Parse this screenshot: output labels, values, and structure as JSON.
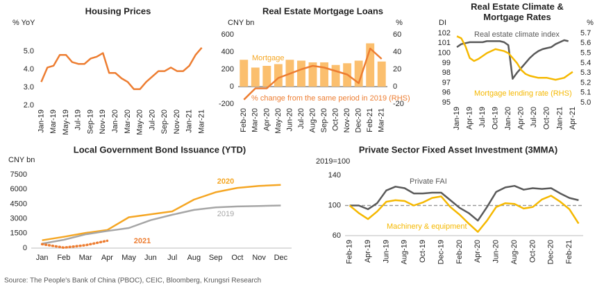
{
  "chart_data": [
    {
      "type": "line",
      "title": "Housing Prices",
      "y_label": "% YoY",
      "categories": [
        "Jan-19",
        null,
        "Mar-19",
        null,
        "May-19",
        null,
        "Jul-19",
        null,
        "Sep-19",
        null,
        "Nov-19",
        null,
        "Jan-20",
        null,
        "Mar-20",
        null,
        "May-20",
        null,
        "Jul-20",
        null,
        "Sep-20",
        null,
        "Nov-20",
        null,
        "Jan-21",
        null,
        "Mar-21"
      ],
      "series": [
        {
          "name": null,
          "color": "#ed7d31",
          "values": [
            3.3,
            4.1,
            4.2,
            4.8,
            4.8,
            4.4,
            4.3,
            4.3,
            4.6,
            4.7,
            4.9,
            3.8,
            3.8,
            3.5,
            3.3,
            2.9,
            2.9,
            3.3,
            3.6,
            3.9,
            3.9,
            4.1,
            3.9,
            3.9,
            4.2,
            4.8,
            5.2
          ]
        }
      ],
      "ylim": [
        2,
        5.5
      ],
      "yticks": [
        {
          "value": 2,
          "label": "2.0"
        },
        {
          "value": 3,
          "label": "3.0"
        },
        {
          "value": 4,
          "label": "4.0"
        },
        {
          "value": 5,
          "label": "5.0"
        }
      ],
      "grid": false
    },
    {
      "type": "bar",
      "title": "Real Estate Mortgage Loans",
      "y_label": "CNY bn",
      "y2_label": "%",
      "categories": [
        "Feb-20",
        "Mar-20",
        "Apr-20",
        "May-20",
        "Jun-20",
        "Jul-20",
        "Aug-20",
        "Sep-20",
        "Oct-20",
        "Nov-20",
        "Dec-20",
        "Feb-21",
        "Mar-21"
      ],
      "series": [
        {
          "name": "Mortgage",
          "type": "bar",
          "color": "#fbbf6e",
          "values": [
            310,
            220,
            240,
            260,
            310,
            300,
            280,
            280,
            250,
            270,
            300,
            500,
            290
          ]
        },
        {
          "name": "% change from the same period in 2019 (RHS)",
          "type": "line",
          "axis": "y2",
          "color": "#ed7d31",
          "values": [
            -15,
            -2,
            -2,
            10,
            15,
            20,
            24,
            22,
            18,
            14,
            4,
            44,
            32
          ]
        }
      ],
      "ylim": [
        -200,
        600
      ],
      "yticks": [
        -200,
        0,
        200,
        400,
        600
      ],
      "y2lim": [
        -20,
        60
      ],
      "y2ticks": [
        -20,
        0,
        20,
        40,
        60
      ],
      "grid": false
    },
    {
      "type": "line",
      "title": "Real Estate Climate & Mortgage Rates",
      "y_label": "DI",
      "y2_label": "%",
      "categories": [
        "Jan-19",
        null,
        null,
        "Apr-19",
        null,
        null,
        "Jul-19",
        null,
        null,
        "Oct-19",
        null,
        null,
        "Jan-20",
        null,
        null,
        "Apr-20",
        null,
        null,
        "Jul-20",
        null,
        null,
        "Oct-20",
        null,
        null,
        "Jan-21",
        null,
        null,
        "Apr-21"
      ],
      "series": [
        {
          "name": "Real estate climate index",
          "color": "#595959",
          "values": [
            100.6,
            100.9,
            101.0,
            101.1,
            101.1,
            101.1,
            101.1,
            101.2,
            101.2,
            101.2,
            101.2,
            101.1,
            100.8,
            97.4,
            98.0,
            98.5,
            99.0,
            99.5,
            99.9,
            100.2,
            100.4,
            100.5,
            100.6,
            100.9,
            101.1,
            101.3,
            101.2,
            null
          ]
        },
        {
          "name": "Mortgage lending rate (RHS)",
          "axis": "y2",
          "color": "#f5b800",
          "values": [
            5.67,
            5.65,
            5.57,
            5.45,
            5.42,
            5.44,
            5.47,
            5.5,
            5.52,
            5.54,
            5.53,
            5.52,
            5.5,
            5.45,
            5.4,
            5.33,
            5.29,
            5.27,
            5.26,
            5.25,
            5.25,
            5.25,
            5.24,
            5.23,
            5.24,
            5.25,
            5.28,
            5.31
          ]
        }
      ],
      "ylim": [
        95,
        102
      ],
      "yticks": [
        95,
        96,
        97,
        98,
        99,
        100,
        101,
        102
      ],
      "y2lim": [
        5,
        5.7
      ],
      "y2ticks": [
        {
          "value": 5,
          "label": "5.0"
        },
        5.1,
        5.2,
        5.3,
        5.4,
        5.5,
        5.6,
        5.7
      ],
      "grid": false
    },
    {
      "type": "line",
      "title": "Local Government Bond Issuance (YTD)",
      "y_label": "CNY bn",
      "categories": [
        "Jan",
        "Feb",
        "Mar",
        "Apr",
        "May",
        "Jun",
        "Jul",
        "Aug",
        "Sep",
        "Oct",
        "Nov",
        "Dec"
      ],
      "series": [
        {
          "name": "2020",
          "color": "#f5a623",
          "values": [
            800,
            1150,
            1550,
            1850,
            3150,
            3450,
            3750,
            4950,
            5700,
            6150,
            6350,
            6450
          ]
        },
        {
          "name": "2019",
          "color": "#a6a6a6",
          "values": [
            450,
            850,
            1400,
            1750,
            2050,
            2850,
            3400,
            3900,
            4150,
            4250,
            4300,
            4350
          ]
        },
        {
          "name": "2021",
          "color": "#ed7d31",
          "line_style": "dotted",
          "values": [
            400,
            50,
            300,
            750,
            null,
            null,
            null,
            null,
            null,
            null,
            null,
            null
          ]
        }
      ],
      "ylim": [
        0,
        7500
      ],
      "yticks": [
        0,
        1500,
        3000,
        4500,
        6000,
        7500
      ],
      "grid": false
    },
    {
      "type": "line",
      "title": "Private Sector Fixed Asset Investment (3MMA)",
      "y_label": "2019=100",
      "categories": [
        "Feb-19",
        null,
        "Apr-19",
        null,
        "Jun-19",
        null,
        "Aug-19",
        null,
        "Oct-19",
        null,
        "Dec-19",
        null,
        "Feb-20",
        null,
        "Apr-20",
        null,
        "Jun-20",
        null,
        "Aug-20",
        null,
        "Oct-20",
        null,
        "Dec-20",
        null,
        "Feb-21",
        null
      ],
      "series": [
        {
          "name": "Private FAI",
          "color": "#595959",
          "values": [
            100,
            100,
            95,
            103,
            120,
            125,
            123,
            116,
            116,
            117,
            117,
            107,
            97,
            90,
            80,
            98,
            118,
            124,
            126,
            121,
            123,
            122,
            123,
            116,
            110,
            107
          ]
        },
        {
          "name": "Machinery & equipment",
          "color": "#f5b800",
          "values": [
            100,
            90,
            82,
            92,
            105,
            107,
            106,
            100,
            104,
            110,
            112,
            98,
            88,
            76,
            65,
            80,
            98,
            103,
            102,
            96,
            98,
            108,
            113,
            105,
            95,
            76
          ]
        }
      ],
      "ylim": [
        60,
        140
      ],
      "yticks": [
        60,
        100,
        140
      ],
      "reference_line": 100,
      "grid": false
    }
  ],
  "source": "Source: The People's Bank of China (PBOC), CEIC, Bloomberg, Krungsri Research"
}
